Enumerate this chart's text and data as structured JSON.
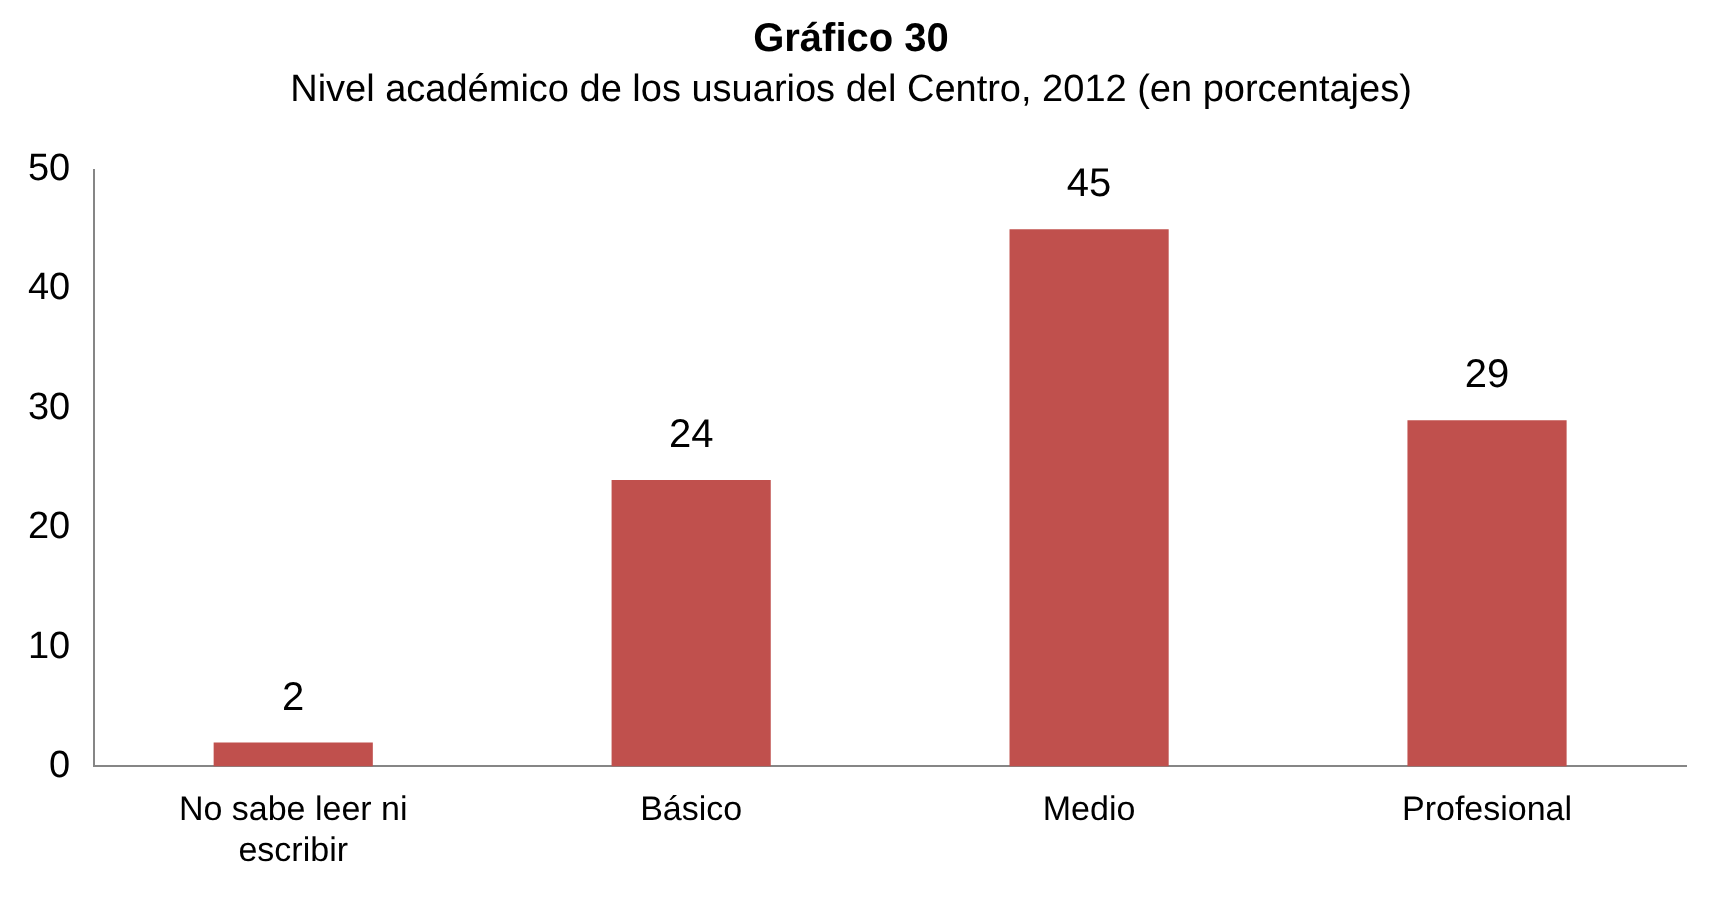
{
  "chart_data": {
    "type": "bar",
    "title": "Gráfico 30",
    "subtitle": "Nivel académico de los usuarios del Centro, 2012 (en porcentajes)",
    "categories": [
      "No sabe leer ni escribir",
      "Básico",
      "Medio",
      "Profesional"
    ],
    "values": [
      2,
      24,
      45,
      29
    ],
    "color": "#c0504d",
    "ylim": [
      0,
      50
    ],
    "yticks": [
      0,
      10,
      20,
      30,
      40,
      50
    ],
    "grid": false,
    "legend": false,
    "data_labels": true
  }
}
